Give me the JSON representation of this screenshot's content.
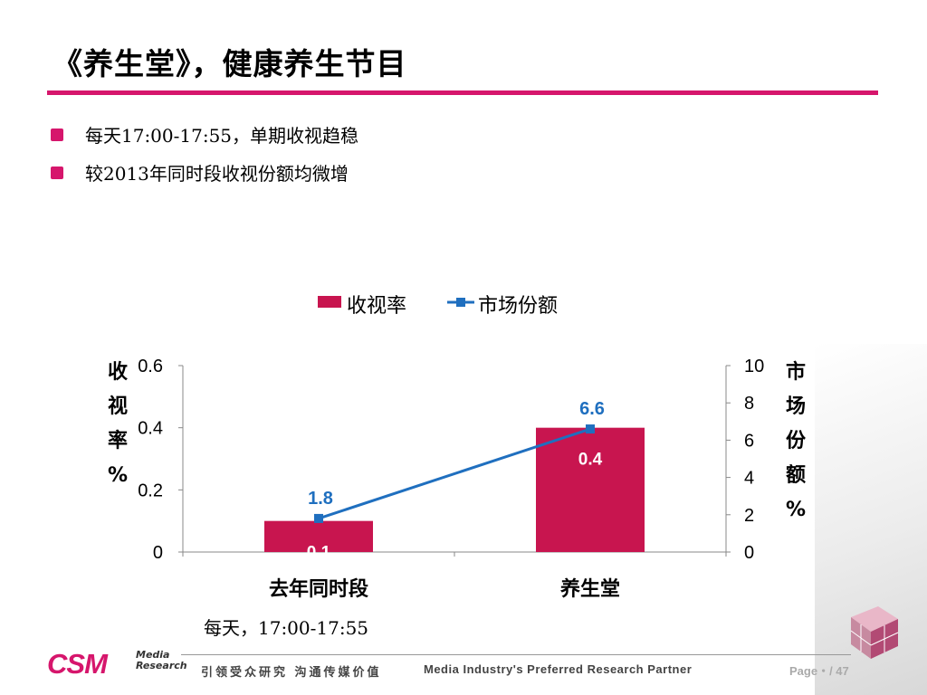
{
  "slide": {
    "title": "《养生堂》，健康养生节目",
    "bullets": [
      "每天17:00-17:55，单期收视趋稳",
      "较2013年同时段收视份额均微增"
    ]
  },
  "chart_data": {
    "type": "bar",
    "categories": [
      "去年同时段",
      "养生堂"
    ],
    "series": [
      {
        "name": "收视率",
        "kind": "bar",
        "axis": "left",
        "values": [
          0.1,
          0.4
        ],
        "color": "#c8154f"
      },
      {
        "name": "市场份额",
        "kind": "line",
        "axis": "right",
        "values": [
          1.8,
          6.6
        ],
        "color": "#1f6fbf"
      }
    ],
    "ylabel": "收视率%",
    "y2label": "市场份额%",
    "ylim": [
      0,
      0.6
    ],
    "y2lim": [
      0,
      10
    ],
    "yticks": [
      "0",
      "0.2",
      "0.4",
      "0.6"
    ],
    "y2ticks": [
      "0",
      "2",
      "4",
      "6",
      "8",
      "10"
    ],
    "legend_position": "top",
    "grid": false,
    "note": "每天，17:00-17:55"
  },
  "footer": {
    "logo": "CSM",
    "logo_sub": "Media Research",
    "slogan_cn": "引领受众研究 沟通传媒价值",
    "slogan_en": "Media Industry's Preferred Research Partner",
    "page": "Page・/ 47"
  },
  "colors": {
    "accent": "#d6166c",
    "bar": "#c8154f",
    "line": "#1f6fbf"
  }
}
